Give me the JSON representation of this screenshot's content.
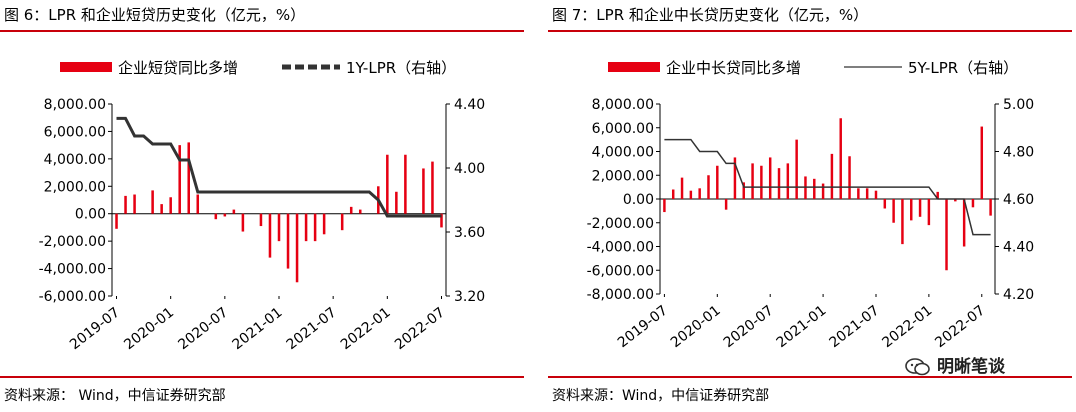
{
  "watermark": {
    "text": "明晰笔谈",
    "icon": "wechat-icon"
  },
  "chart_data": [
    {
      "type": "bar+line",
      "title": "图 6：LPR 和企业短贷历史变化（亿元，%）",
      "source": "资料来源：  Wind，中信证券研究部",
      "bar_color": "#e60012",
      "line_color": "#333333",
      "legend": {
        "position": "top",
        "bar_label": "企业短贷同比多增",
        "line_label": "1Y-LPR（右轴）",
        "line_style": "thick-dashed"
      },
      "left_axis": {
        "min": -6000,
        "max": 8000,
        "ticks": [
          "8,000.00",
          "6,000.00",
          "4,000.00",
          "2,000.00",
          "0.00",
          "-2,000.00",
          "-4,000.00",
          "-6,000.00"
        ],
        "tick_values": [
          8000,
          6000,
          4000,
          2000,
          0,
          -2000,
          -4000,
          -6000
        ]
      },
      "right_axis": {
        "min": 3.2,
        "max": 4.4,
        "ticks": [
          "4.40",
          "4.00",
          "3.60",
          "3.20"
        ],
        "tick_values": [
          4.4,
          4.0,
          3.6,
          3.2
        ]
      },
      "x_ticks": [
        "2019-07",
        "2020-01",
        "2020-07",
        "2021-01",
        "2021-07",
        "2022-01",
        "2022-07"
      ],
      "x_tick_index": [
        0,
        6,
        12,
        18,
        24,
        30,
        36
      ],
      "bars": [
        -1100,
        1300,
        1400,
        0,
        1700,
        700,
        1200,
        5000,
        5200,
        1400,
        0,
        -400,
        -200,
        300,
        -1300,
        0,
        -900,
        -3200,
        -2000,
        -4000,
        -5000,
        -2000,
        -2000,
        -1500,
        0,
        -1200,
        500,
        300,
        0,
        2000,
        4300,
        1600,
        4300,
        0,
        3300,
        3800,
        -1000
      ],
      "line": [
        4.31,
        4.31,
        4.2,
        4.2,
        4.15,
        4.15,
        4.15,
        4.05,
        4.05,
        3.85,
        3.85,
        3.85,
        3.85,
        3.85,
        3.85,
        3.85,
        3.85,
        3.85,
        3.85,
        3.85,
        3.85,
        3.85,
        3.85,
        3.85,
        3.85,
        3.85,
        3.85,
        3.85,
        3.85,
        3.8,
        3.7,
        3.7,
        3.7,
        3.7,
        3.7,
        3.7,
        3.7
      ]
    },
    {
      "type": "bar+line",
      "title": "图 7：LPR 和企业中长贷历史变化（亿元，%）",
      "source": "资料来源：Wind，中信证券研究部",
      "bar_color": "#e60012",
      "line_color": "#333333",
      "legend": {
        "position": "top",
        "bar_label": "企业中长贷同比多增",
        "line_label": "5Y-LPR（右轴）",
        "line_style": "thin-solid"
      },
      "left_axis": {
        "min": -8000,
        "max": 8000,
        "ticks": [
          "8,000.00",
          "6,000.00",
          "4,000.00",
          "2,000.00",
          "0.00",
          "-2,000.00",
          "-4,000.00",
          "-6,000.00",
          "-8,000.00"
        ],
        "tick_values": [
          8000,
          6000,
          4000,
          2000,
          0,
          -2000,
          -4000,
          -6000,
          -8000
        ]
      },
      "right_axis": {
        "min": 4.2,
        "max": 5.0,
        "ticks": [
          "5.00",
          "4.80",
          "4.60",
          "4.40",
          "4.20"
        ],
        "tick_values": [
          5.0,
          4.8,
          4.6,
          4.4,
          4.2
        ]
      },
      "x_ticks": [
        "2019-07",
        "2020-01",
        "2020-07",
        "2021-01",
        "2021-07",
        "2022-01",
        "2022-07"
      ],
      "x_tick_index": [
        0,
        6,
        12,
        18,
        24,
        30,
        36
      ],
      "bars": [
        -1100,
        800,
        1800,
        700,
        900,
        2000,
        2800,
        -900,
        3500,
        1400,
        3000,
        2800,
        3500,
        2600,
        3000,
        5000,
        1900,
        1700,
        1300,
        3800,
        6800,
        3600,
        900,
        900,
        700,
        -800,
        -2000,
        -3800,
        -1800,
        -1500,
        -2200,
        600,
        -6000,
        -200,
        -4000,
        -700,
        6100,
        -1400
      ],
      "line": [
        4.85,
        4.85,
        4.85,
        4.85,
        4.8,
        4.8,
        4.8,
        4.75,
        4.75,
        4.65,
        4.65,
        4.65,
        4.65,
        4.65,
        4.65,
        4.65,
        4.65,
        4.65,
        4.65,
        4.65,
        4.65,
        4.65,
        4.65,
        4.65,
        4.65,
        4.65,
        4.65,
        4.65,
        4.65,
        4.65,
        4.65,
        4.6,
        4.6,
        4.6,
        4.6,
        4.45,
        4.45,
        4.45
      ]
    }
  ]
}
